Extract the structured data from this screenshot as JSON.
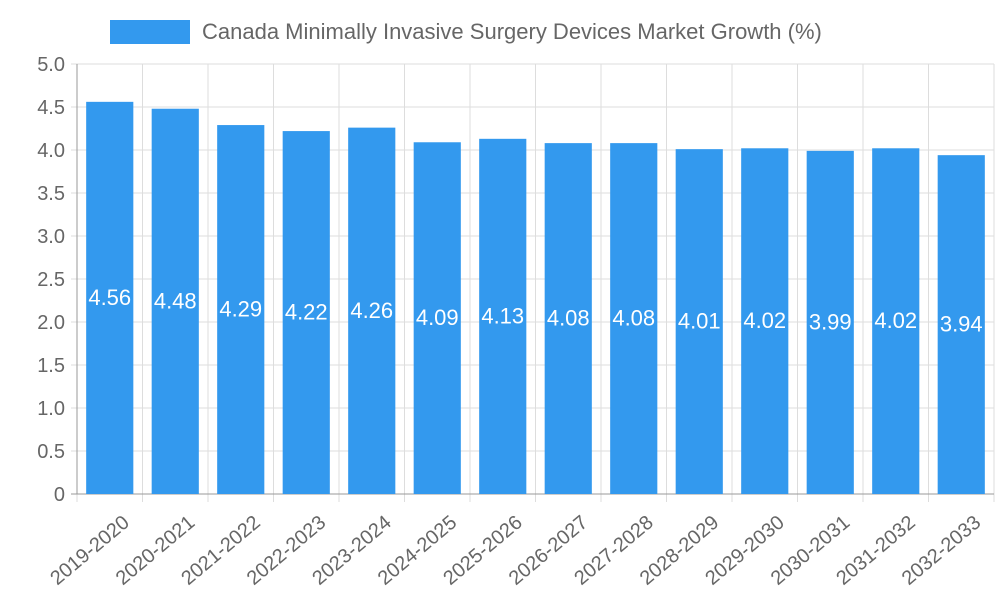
{
  "chart_data": {
    "type": "bar",
    "title": "Canada Minimally Invasive Surgery Devices Market Growth (%)",
    "legend": {
      "label": "Canada Minimally Invasive Surgery Devices Market Growth (%)",
      "placement": "top-center"
    },
    "xlabel": "",
    "ylabel": "",
    "ylim": [
      0,
      5.0
    ],
    "yticks": [
      "0",
      "0.5",
      "1.0",
      "1.5",
      "2.0",
      "2.5",
      "3.0",
      "3.5",
      "4.0",
      "4.5",
      "5.0"
    ],
    "ytick_values": [
      0,
      0.5,
      1,
      1.5,
      2,
      2.5,
      3,
      3.5,
      4,
      4.5,
      5
    ],
    "grid": true,
    "categories": [
      "2019-2020",
      "2020-2021",
      "2021-2022",
      "2022-2023",
      "2023-2024",
      "2024-2025",
      "2025-2026",
      "2026-2027",
      "2027-2028",
      "2028-2029",
      "2029-2030",
      "2030-2031",
      "2031-2032",
      "2032-2033"
    ],
    "values": [
      4.56,
      4.48,
      4.29,
      4.22,
      4.26,
      4.09,
      4.13,
      4.08,
      4.08,
      4.01,
      4.02,
      3.99,
      4.02,
      3.94
    ],
    "data_labels": [
      "4.56",
      "4.48",
      "4.29",
      "4.22",
      "4.26",
      "4.09",
      "4.13",
      "4.08",
      "4.08",
      "4.01",
      "4.02",
      "3.99",
      "4.02",
      "3.94"
    ],
    "colors": {
      "bar": "#3399ee",
      "grid": "#dddddd",
      "axis": "#999999",
      "tick_text": "#666666",
      "label_text": "#ffffff"
    }
  }
}
